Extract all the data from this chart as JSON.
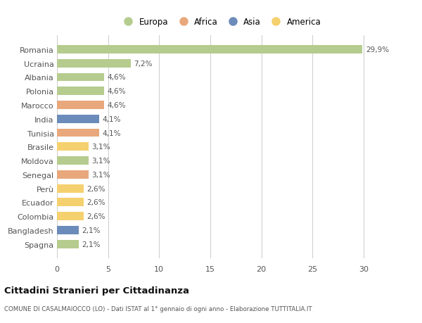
{
  "countries": [
    "Romania",
    "Ucraina",
    "Albania",
    "Polonia",
    "Marocco",
    "India",
    "Tunisia",
    "Brasile",
    "Moldova",
    "Senegal",
    "Perù",
    "Ecuador",
    "Colombia",
    "Bangladesh",
    "Spagna"
  ],
  "values": [
    29.9,
    7.2,
    4.6,
    4.6,
    4.6,
    4.1,
    4.1,
    3.1,
    3.1,
    3.1,
    2.6,
    2.6,
    2.6,
    2.1,
    2.1
  ],
  "labels": [
    "29,9%",
    "7,2%",
    "4,6%",
    "4,6%",
    "4,6%",
    "4,1%",
    "4,1%",
    "3,1%",
    "3,1%",
    "3,1%",
    "2,6%",
    "2,6%",
    "2,6%",
    "2,1%",
    "2,1%"
  ],
  "continents": [
    "Europa",
    "Europa",
    "Europa",
    "Europa",
    "Africa",
    "Asia",
    "Africa",
    "America",
    "Europa",
    "Africa",
    "America",
    "America",
    "America",
    "Asia",
    "Europa"
  ],
  "continent_colors": {
    "Europa": "#b5cc8e",
    "Africa": "#e8a87c",
    "Asia": "#6b8cba",
    "America": "#f5d06e"
  },
  "legend_order": [
    "Europa",
    "Africa",
    "Asia",
    "America"
  ],
  "title": "Cittadini Stranieri per Cittadinanza",
  "subtitle": "COMUNE DI CASALMAIOCCO (LO) - Dati ISTAT al 1° gennaio di ogni anno - Elaborazione TUTTITALIA.IT",
  "xlim": [
    0,
    32
  ],
  "xticks": [
    0,
    5,
    10,
    15,
    20,
    25,
    30
  ],
  "background_color": "#ffffff",
  "grid_color": "#d0d0d0",
  "bar_height": 0.6
}
